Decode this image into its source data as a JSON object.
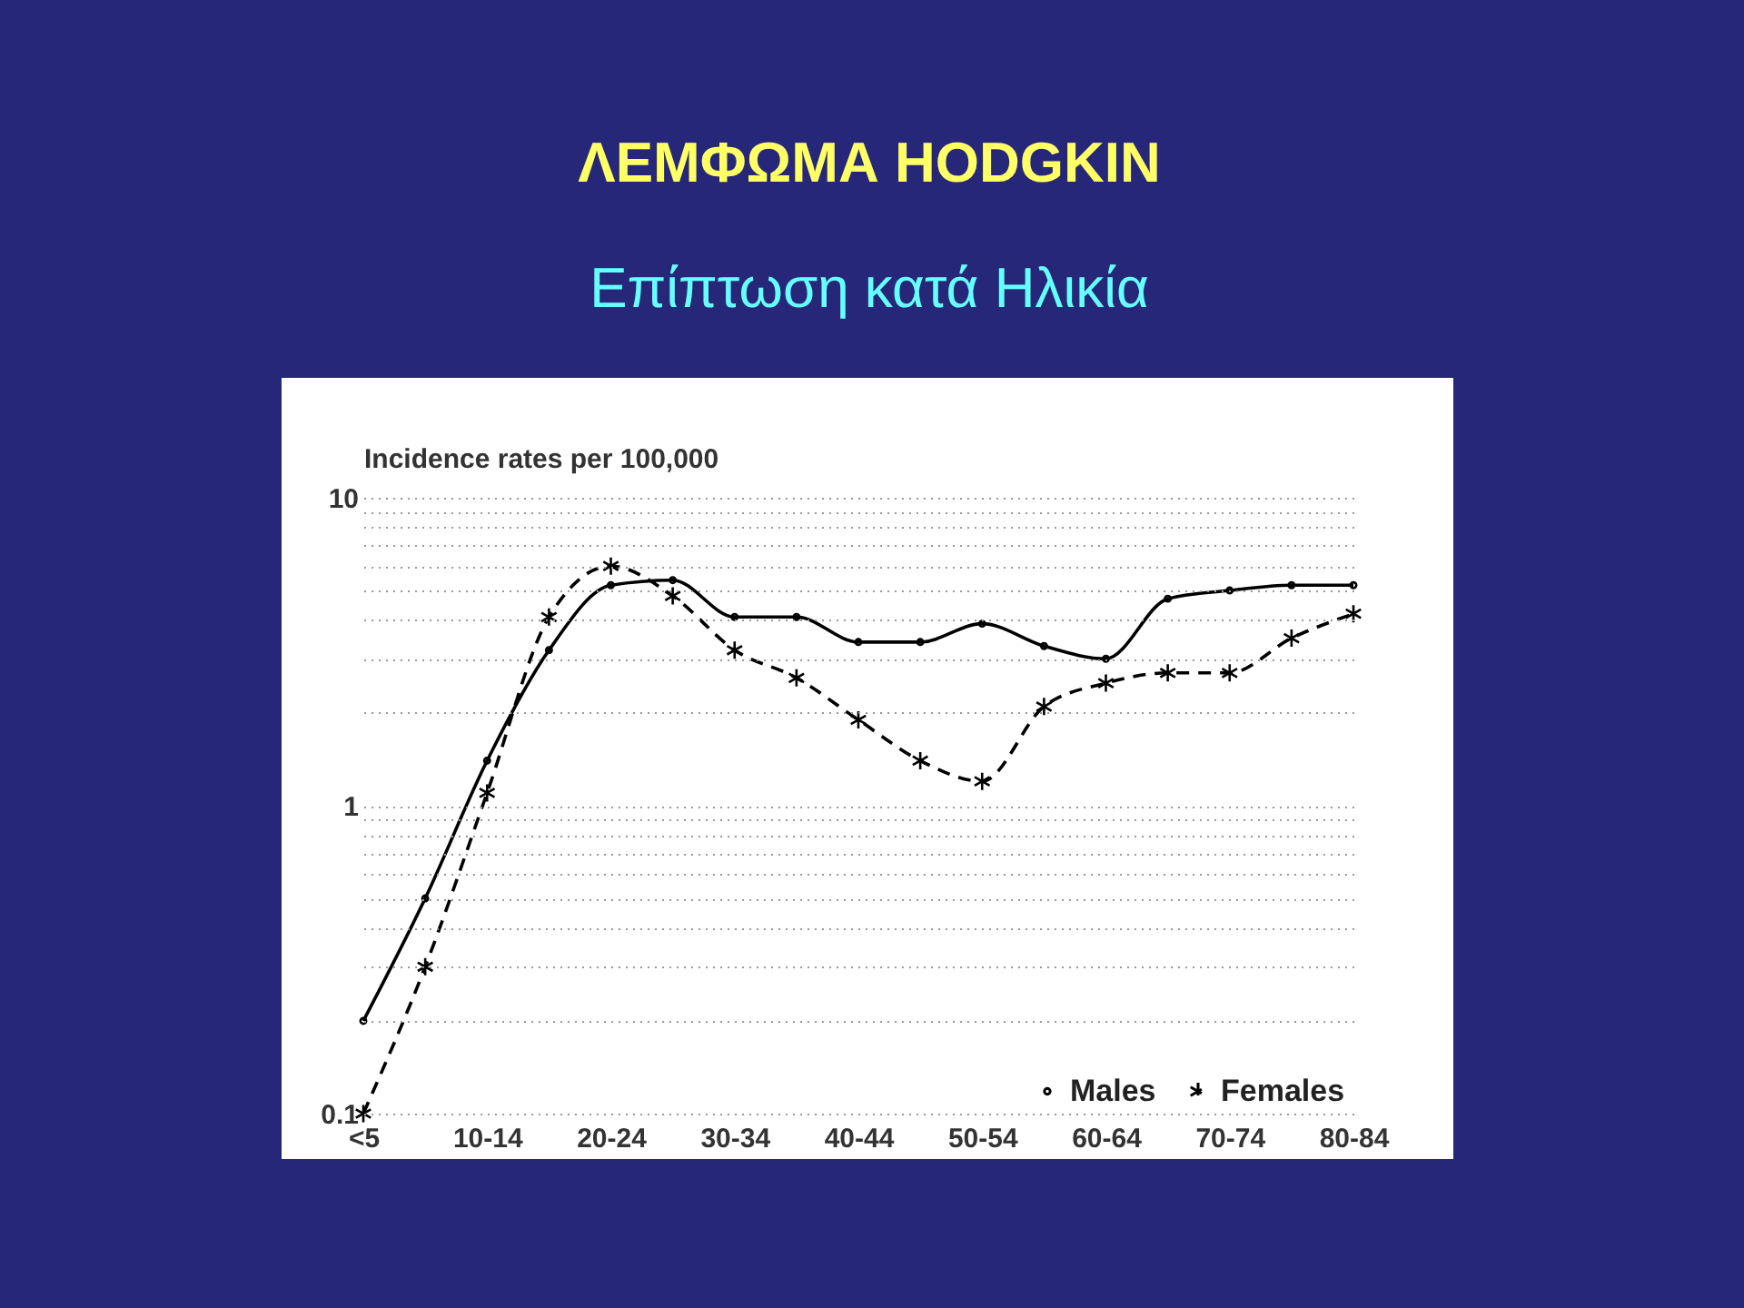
{
  "chart_data": {
    "type": "line",
    "title": "ΛΕΜΦΩΜΑ HODGKIN",
    "subtitle": "Επίπτωση κατά Ηλικία",
    "ylabel": "Incidence rates per 100,000",
    "categories": [
      "<5",
      null,
      "10-14",
      null,
      "20-24",
      null,
      "30-34",
      null,
      "40-44",
      null,
      "50-54",
      null,
      "60-64",
      null,
      "70-74",
      null,
      "80-84"
    ],
    "series": [
      {
        "name": "Males",
        "color": "#000000",
        "marker": "circle",
        "line_style": "solid",
        "values": [
          0.2,
          0.5,
          1.4,
          3.2,
          5.2,
          5.4,
          4.1,
          4.1,
          3.4,
          3.4,
          3.9,
          3.3,
          3.0,
          4.7,
          5.0,
          5.2,
          5.2
        ]
      },
      {
        "name": "Females",
        "color": "#000000",
        "marker": "cross",
        "line_style": "dashed",
        "values": [
          0.1,
          0.3,
          1.1,
          4.1,
          6.0,
          4.8,
          3.2,
          2.6,
          1.9,
          1.4,
          1.2,
          2.1,
          2.5,
          2.7,
          2.7,
          3.5,
          4.2
        ]
      }
    ],
    "ylim": [
      0.1,
      10
    ],
    "yticks": [
      0.1,
      {
        "value": 0.2,
        "label": null
      },
      {
        "value": 0.3,
        "label": null
      },
      {
        "value": 0.4,
        "label": null
      },
      {
        "value": 0.5,
        "label": null
      },
      {
        "value": 0.6,
        "label": null
      },
      {
        "value": 0.7,
        "label": null
      },
      {
        "value": 0.8,
        "label": null
      },
      {
        "value": 0.9,
        "label": null
      },
      1,
      {
        "value": 2,
        "label": null
      },
      {
        "value": 3,
        "label": null
      },
      {
        "value": 4,
        "label": null
      },
      {
        "value": 5,
        "label": null
      },
      {
        "value": 6,
        "label": null
      },
      {
        "value": 7,
        "label": null
      },
      {
        "value": 8,
        "label": null
      },
      {
        "value": 9,
        "label": null
      },
      10
    ],
    "log": true,
    "grid": "y",
    "legend": "bottom right"
  }
}
